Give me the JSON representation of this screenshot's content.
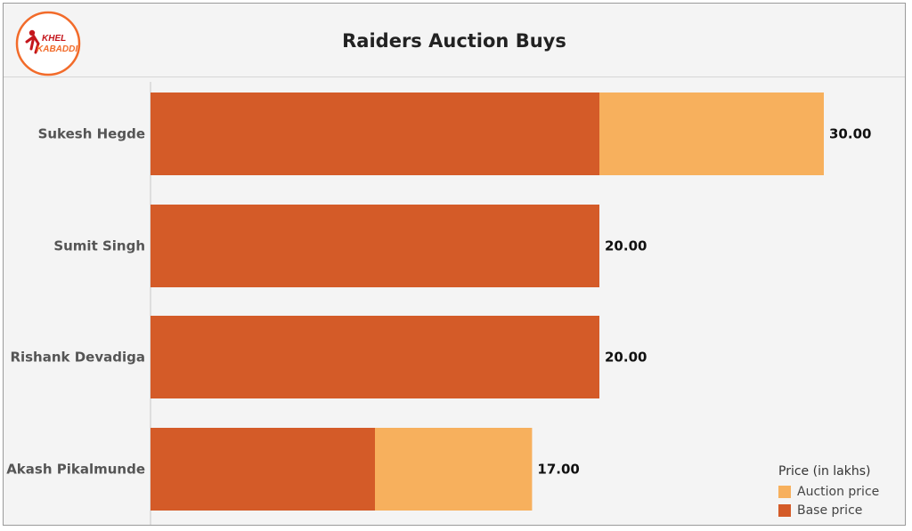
{
  "title": "Raiders Auction Buys",
  "logo": {
    "text": "KHEL KABADDI",
    "colors": {
      "ring": "#f26b2a",
      "dark": "#c4161c"
    }
  },
  "colors": {
    "base": "#d45b28",
    "auction": "#f7b05d",
    "axis": "#c9c9c9"
  },
  "legend": {
    "title": "Price (in lakhs)",
    "items": [
      {
        "label": "Auction price",
        "color": "#f7b05d"
      },
      {
        "label": "Base price",
        "color": "#d45b28"
      }
    ]
  },
  "chart_data": {
    "type": "bar",
    "orientation": "horizontal",
    "stacked": true,
    "categories": [
      "Sukesh Hegde",
      "Sumit Singh",
      "Rishank Devadiga",
      "Akash Pikalmunde"
    ],
    "series": [
      {
        "name": "Base price",
        "values": [
          20,
          20,
          20,
          10
        ]
      },
      {
        "name": "Auction price",
        "values": [
          10,
          0,
          0,
          7
        ]
      }
    ],
    "totals": [
      "30.00",
      "20.00",
      "20.00",
      "17.00"
    ],
    "xlim": [
      0,
      36
    ],
    "grid": false,
    "legend_position": "bottom-right"
  }
}
